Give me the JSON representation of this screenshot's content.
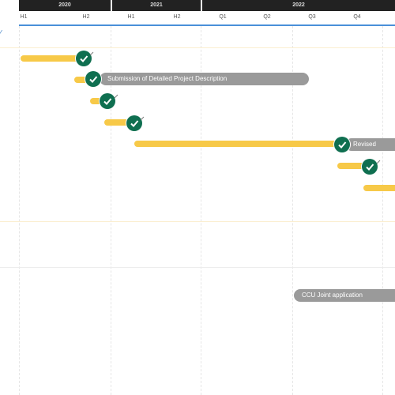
{
  "header": {
    "years": [
      "2020",
      "2021",
      "2022"
    ],
    "periods": [
      "H1",
      "H2",
      "H1",
      "H2",
      "Q1",
      "Q2",
      "Q3",
      "Q4"
    ]
  },
  "milestones": [
    {
      "label": ""
    },
    {
      "label": "Submission of Detailed Project Description"
    },
    {
      "label": ""
    },
    {
      "label": ""
    },
    {
      "label": "Revised"
    },
    {
      "label": ""
    },
    {
      "label": ""
    }
  ],
  "lower_label": "CCU Joint application",
  "colors": {
    "bar": "#f7c948",
    "milestone": "#0f6f50",
    "pill": "#9a9a9a",
    "header": "#222222",
    "rule": "#4a90d9"
  },
  "icons": {
    "check": "check-icon",
    "edge": "chevron-mark"
  }
}
